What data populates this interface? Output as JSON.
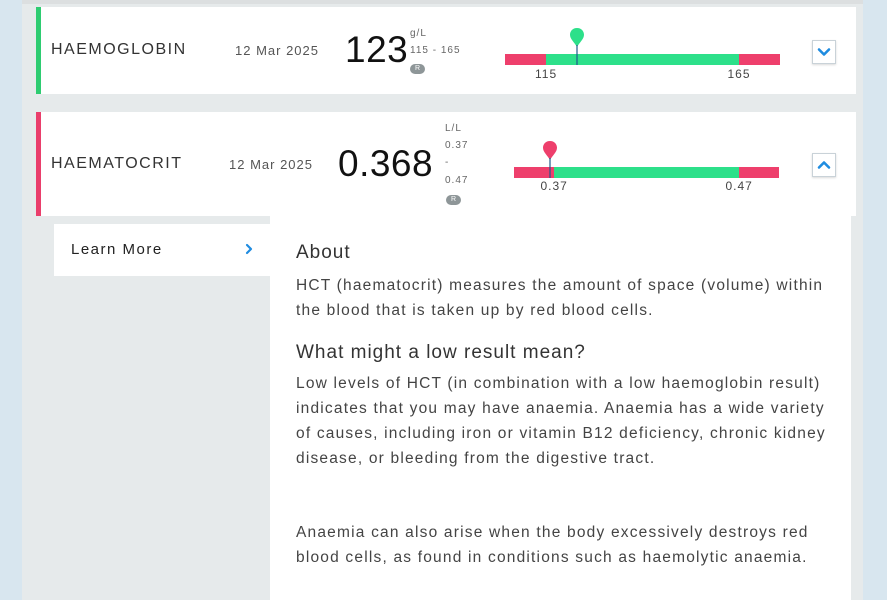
{
  "tests": [
    {
      "name": "HAEMOGLOBIN",
      "date": "12 Mar 2025",
      "value": "123",
      "unit": "g/L",
      "range_text": "115 - 165",
      "badge": "R",
      "range_low": 115,
      "range_high": 165,
      "result": 123,
      "low_label": "115",
      "high_label": "165",
      "status_color": "#2ecc71",
      "marker_color": "#2de08a",
      "expand_icon": "chevron-down-icon"
    },
    {
      "name": "HAEMATOCRIT",
      "date": "12 Mar 2025",
      "value": "0.368",
      "unit": "L/L",
      "range_low_text": "0.37",
      "range_dash": "-",
      "range_high_text": "0.47",
      "badge": "R",
      "range_low": 0.37,
      "range_high": 0.47,
      "result": 0.368,
      "low_label": "0.37",
      "high_label": "0.47",
      "status_color": "#ea3e6b",
      "marker_color": "#ee3f6c",
      "expand_icon": "chevron-up-icon"
    }
  ],
  "sidebar": {
    "learn_more": "Learn More",
    "arrow_icon": "chevron-right-icon"
  },
  "about": {
    "heading": "About",
    "text": "HCT (haematocrit) measures the amount of space (volume) within the blood that is taken up by red blood cells.",
    "low_heading": "What might a low result mean?",
    "low_text_1": "Low levels of HCT (in combination with a low haemoglobin result) indicates that you may have anaemia. Anaemia has a wide variety of causes, including iron or vitamin B12 deficiency, chronic kidney disease, or bleeding from the digestive tract.",
    "low_text_2": "Anaemia can also arise when the body excessively destroys red blood cells, as found in conditions such as haemolytic anaemia."
  },
  "colors": {
    "accent_blue": "#1f8ce0",
    "out_of_range": "#ee3f6c",
    "in_range": "#2de08a"
  }
}
